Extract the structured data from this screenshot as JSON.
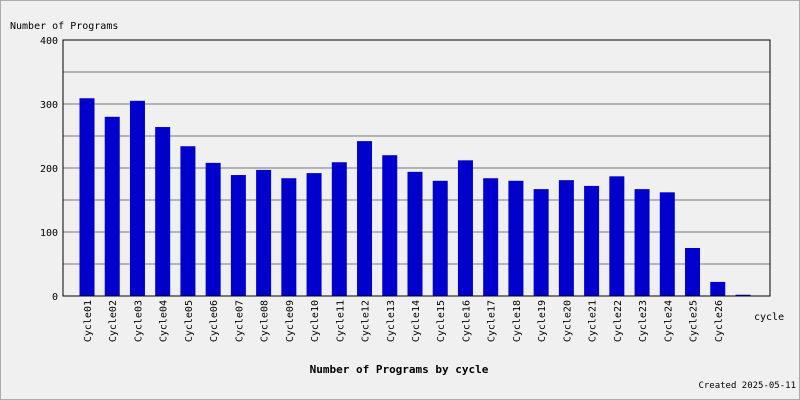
{
  "chart_data": {
    "type": "bar",
    "title": "Number of Programs by cycle",
    "y_label": "Number of Programs",
    "x_label": "cycle",
    "footer": "Created 2025-05-11",
    "categories": [
      "Cycle01",
      "Cycle02",
      "Cycle03",
      "Cycle04",
      "Cycle05",
      "Cycle06",
      "Cycle07",
      "Cycle08",
      "Cycle09",
      "Cycle10",
      "Cycle11",
      "Cycle12",
      "Cycle13",
      "Cycle14",
      "Cycle15",
      "Cycle16",
      "Cycle17",
      "Cycle18",
      "Cycle19",
      "Cycle20",
      "Cycle21",
      "Cycle22",
      "Cycle23",
      "Cycle24",
      "Cycle25",
      "Cycle26",
      null
    ],
    "values": [
      309,
      280,
      305,
      264,
      234,
      208,
      189,
      197,
      184,
      192,
      209,
      242,
      220,
      194,
      180,
      212,
      184,
      180,
      167,
      181,
      172,
      187,
      167,
      162,
      75,
      22,
      2
    ],
    "color": "#0000cc",
    "ylim": [
      0,
      400
    ],
    "yticks": [
      0,
      100,
      200,
      300,
      400
    ],
    "minor_yticks": [
      50,
      150,
      250,
      350
    ],
    "grid": true
  }
}
